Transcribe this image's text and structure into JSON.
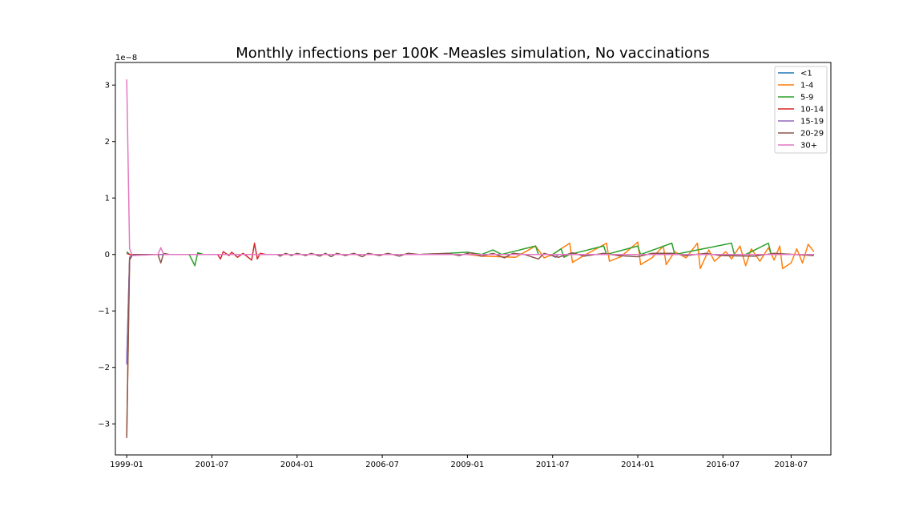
{
  "chart_data": {
    "type": "line",
    "title": "Monthly infections per 100K -Measles simulation, No vaccinations",
    "xlabel": "",
    "ylabel": "",
    "y_scale_note": "1e−8",
    "y_multiplier": 1e-08,
    "xlim": [
      "1998-09",
      "2019-09"
    ],
    "ylim": [
      -3.55,
      3.4
    ],
    "x_ticks": [
      "1999-01",
      "2001-07",
      "2004-01",
      "2006-07",
      "2009-01",
      "2011-07",
      "2014-01",
      "2016-07",
      "2018-07"
    ],
    "y_ticks": [
      3,
      2,
      1,
      0,
      -1,
      -2,
      -3
    ],
    "y_tick_labels": [
      "3",
      "2",
      "1",
      "0",
      "−1",
      "−2",
      "−3"
    ],
    "grid": false,
    "legend_position": "top-right",
    "x_start": "1999-01",
    "x_end": "2019-03",
    "series": [
      {
        "name": "<1",
        "color": "#1f77b4",
        "points": [
          [
            "1999-01",
            -1.9
          ],
          [
            "1999-02",
            -0.1
          ],
          [
            "1999-03",
            0
          ],
          [
            "2019-03",
            0
          ]
        ]
      },
      {
        "name": "1-4",
        "color": "#ff7f0e",
        "points": [
          [
            "1999-01",
            -3.2
          ],
          [
            "1999-02",
            -0.1
          ],
          [
            "1999-03",
            0
          ],
          [
            "2009-01",
            0
          ],
          [
            "2009-06",
            -0.03
          ],
          [
            "2010-06",
            -0.05
          ],
          [
            "2011-01",
            0.15
          ],
          [
            "2011-04",
            -0.06
          ],
          [
            "2011-07",
            0
          ],
          [
            "2012-01",
            0.2
          ],
          [
            "2012-02",
            -0.14
          ],
          [
            "2012-06",
            -0.02
          ],
          [
            "2013-02",
            0.2
          ],
          [
            "2013-03",
            -0.12
          ],
          [
            "2013-07",
            -0.04
          ],
          [
            "2014-01",
            0.22
          ],
          [
            "2014-02",
            -0.18
          ],
          [
            "2014-06",
            -0.06
          ],
          [
            "2014-10",
            0.15
          ],
          [
            "2014-11",
            -0.18
          ],
          [
            "2015-02",
            0.05
          ],
          [
            "2015-06",
            -0.06
          ],
          [
            "2015-10",
            0.2
          ],
          [
            "2015-11",
            -0.25
          ],
          [
            "2016-02",
            0.08
          ],
          [
            "2016-04",
            -0.12
          ],
          [
            "2016-08",
            0.05
          ],
          [
            "2016-10",
            -0.08
          ],
          [
            "2017-01",
            0.15
          ],
          [
            "2017-03",
            -0.2
          ],
          [
            "2017-05",
            0.1
          ],
          [
            "2017-08",
            -0.12
          ],
          [
            "2017-11",
            0.12
          ],
          [
            "2018-01",
            -0.1
          ],
          [
            "2018-03",
            0.15
          ],
          [
            "2018-04",
            -0.25
          ],
          [
            "2018-07",
            -0.15
          ],
          [
            "2018-09",
            0.1
          ],
          [
            "2018-11",
            -0.15
          ],
          [
            "2019-01",
            0.18
          ],
          [
            "2019-03",
            0.05
          ]
        ]
      },
      {
        "name": "5-9",
        "color": "#2ca02c",
        "points": [
          [
            "1999-01",
            0.05
          ],
          [
            "1999-02",
            0
          ],
          [
            "2000-06",
            0
          ],
          [
            "2000-11",
            0
          ],
          [
            "2001-01",
            -0.2
          ],
          [
            "2001-02",
            0.03
          ],
          [
            "2001-04",
            0
          ],
          [
            "2007-08",
            0
          ],
          [
            "2008-06",
            0.02
          ],
          [
            "2009-01",
            0.04
          ],
          [
            "2009-06",
            0
          ],
          [
            "2009-10",
            0.08
          ],
          [
            "2010-01",
            0
          ],
          [
            "2011-01",
            0.15
          ],
          [
            "2011-02",
            0
          ],
          [
            "2011-07",
            0
          ],
          [
            "2011-10",
            0.1
          ],
          [
            "2011-11",
            -0.05
          ],
          [
            "2012-01",
            0
          ],
          [
            "2013-01",
            0.15
          ],
          [
            "2013-02",
            0
          ],
          [
            "2014-01",
            0.15
          ],
          [
            "2014-02",
            0
          ],
          [
            "2015-01",
            0.2
          ],
          [
            "2015-02",
            0
          ],
          [
            "2016-10",
            0.2
          ],
          [
            "2016-11",
            0
          ],
          [
            "2017-03",
            0
          ],
          [
            "2017-11",
            0.2
          ],
          [
            "2017-12",
            0
          ],
          [
            "2019-03",
            0
          ]
        ]
      },
      {
        "name": "10-14",
        "color": "#d62728",
        "points": [
          [
            "1999-01",
            0.02
          ],
          [
            "1999-02",
            0
          ],
          [
            "2001-09",
            0
          ],
          [
            "2001-10",
            -0.08
          ],
          [
            "2001-11",
            0.05
          ],
          [
            "2002-01",
            -0.02
          ],
          [
            "2002-02",
            0.04
          ],
          [
            "2002-04",
            -0.05
          ],
          [
            "2002-06",
            0.02
          ],
          [
            "2002-09",
            -0.1
          ],
          [
            "2002-10",
            0.2
          ],
          [
            "2002-11",
            -0.08
          ],
          [
            "2002-12",
            0.02
          ],
          [
            "2003-02",
            0
          ],
          [
            "2003-06",
            0
          ],
          [
            "2019-03",
            0
          ]
        ]
      },
      {
        "name": "15-19",
        "color": "#9467bd",
        "points": [
          [
            "1999-01",
            -1.95
          ],
          [
            "1999-02",
            -0.05
          ],
          [
            "1999-03",
            0
          ],
          [
            "2011-06",
            0
          ],
          [
            "2011-08",
            -0.05
          ],
          [
            "2011-09",
            0
          ],
          [
            "2019-03",
            0
          ]
        ]
      },
      {
        "name": "20-29",
        "color": "#8c564b",
        "points": [
          [
            "1999-01",
            -3.25
          ],
          [
            "1999-02",
            -0.1
          ],
          [
            "1999-03",
            0
          ],
          [
            "1999-12",
            0
          ],
          [
            "2000-01",
            -0.15
          ],
          [
            "2000-02",
            0.02
          ],
          [
            "2000-04",
            0
          ],
          [
            "2003-06",
            0
          ],
          [
            "2003-07",
            -0.03
          ],
          [
            "2003-09",
            0.02
          ],
          [
            "2003-11",
            -0.02
          ],
          [
            "2004-01",
            0.02
          ],
          [
            "2004-04",
            -0.02
          ],
          [
            "2004-06",
            0.02
          ],
          [
            "2004-09",
            -0.03
          ],
          [
            "2004-11",
            0.02
          ],
          [
            "2005-01",
            -0.04
          ],
          [
            "2005-03",
            0.02
          ],
          [
            "2005-06",
            -0.02
          ],
          [
            "2005-09",
            0.02
          ],
          [
            "2005-12",
            -0.04
          ],
          [
            "2006-02",
            0.02
          ],
          [
            "2006-06",
            -0.02
          ],
          [
            "2006-09",
            0.02
          ],
          [
            "2007-01",
            -0.03
          ],
          [
            "2007-04",
            0.02
          ],
          [
            "2007-08",
            0
          ],
          [
            "2008-06",
            0.02
          ],
          [
            "2008-10",
            -0.02
          ],
          [
            "2009-02",
            0.03
          ],
          [
            "2009-06",
            -0.03
          ],
          [
            "2009-10",
            0.02
          ],
          [
            "2010-02",
            -0.06
          ],
          [
            "2010-05",
            0.02
          ],
          [
            "2010-09",
            0
          ],
          [
            "2011-02",
            -0.08
          ],
          [
            "2011-04",
            0.02
          ],
          [
            "2011-09",
            -0.05
          ],
          [
            "2012-02",
            0.03
          ],
          [
            "2012-06",
            -0.03
          ],
          [
            "2013-01",
            0.02
          ],
          [
            "2013-06",
            -0.02
          ],
          [
            "2014-01",
            -0.04
          ],
          [
            "2014-06",
            0.02
          ],
          [
            "2015-01",
            0.02
          ],
          [
            "2015-06",
            -0.02
          ],
          [
            "2016-01",
            0.02
          ],
          [
            "2016-06",
            -0.02
          ],
          [
            "2017-06",
            -0.03
          ],
          [
            "2018-01",
            0.02
          ],
          [
            "2019-03",
            -0.02
          ]
        ]
      },
      {
        "name": "30+",
        "color": "#e377c2",
        "points": [
          [
            "1999-01",
            3.1
          ],
          [
            "1999-02",
            0.1
          ],
          [
            "1999-03",
            -0.02
          ],
          [
            "1999-12",
            0
          ],
          [
            "2000-01",
            0.12
          ],
          [
            "2000-02",
            0
          ],
          [
            "2019-03",
            0
          ]
        ]
      }
    ]
  }
}
